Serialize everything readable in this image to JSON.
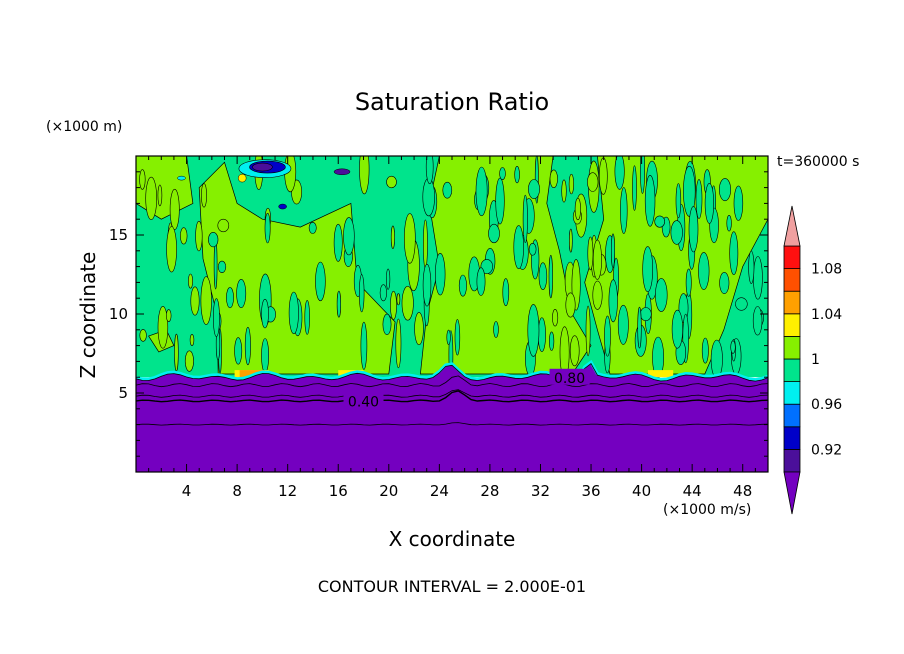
{
  "chart_data": {
    "type": "heatmap",
    "title": "Saturation Ratio",
    "xlabel": "X coordinate",
    "ylabel": "Z coordinate",
    "x_unit": "(×1000 m/s)",
    "y_unit": "(×1000 m)",
    "time_label": "t=360000 s",
    "footnote": "CONTOUR INTERVAL = 2.000E-01",
    "xlim": [
      0,
      50
    ],
    "ylim": [
      0,
      20
    ],
    "x_ticks": [
      4,
      8,
      12,
      16,
      20,
      24,
      28,
      32,
      36,
      40,
      44,
      48
    ],
    "y_ticks": [
      5,
      10,
      15
    ],
    "colorbar": {
      "levels": [
        0.9,
        0.92,
        0.94,
        0.96,
        0.98,
        1.0,
        1.02,
        1.04,
        1.06,
        1.08,
        1.1
      ],
      "tick_labels": [
        "0.92",
        "0.96",
        "1",
        "1.04",
        "1.08"
      ],
      "tick_values": [
        0.92,
        0.96,
        1.0,
        1.04,
        1.08
      ],
      "band_colors": [
        "#4b0f9a",
        "#0000c8",
        "#0070ff",
        "#00f0f0",
        "#00e48c",
        "#86f000",
        "#fff000",
        "#ffa000",
        "#ff5000",
        "#ff1010"
      ],
      "under_color": "#7400c0",
      "over_color": "#f0a0a0"
    },
    "contour_labels": [
      {
        "text": "0.40",
        "x": 18.0,
        "z": 4.4
      },
      {
        "text": "0.80",
        "x": 34.3,
        "z": 5.9
      }
    ],
    "regions": {
      "dry_layer_top_km": 6.0,
      "lower_layer_ratio": "below 0.90",
      "upper_layer_ratio": "about 0.98–1.02"
    }
  }
}
